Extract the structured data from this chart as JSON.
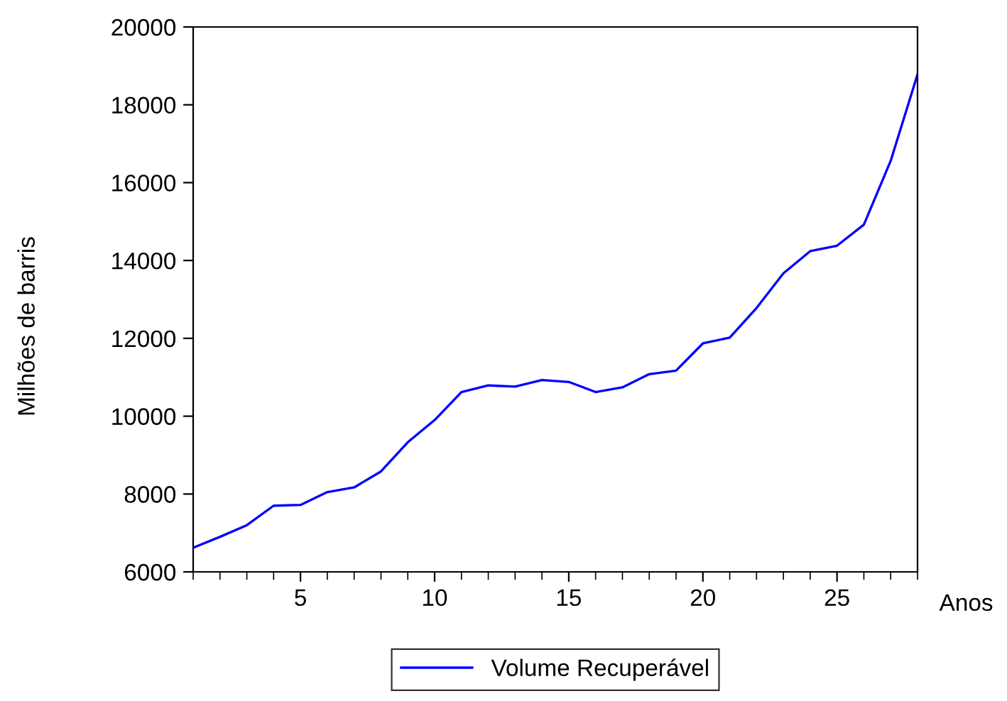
{
  "chart_data": {
    "type": "line",
    "xlabel": "Anos",
    "ylabel": "Milhões de barris",
    "x": [
      1,
      2,
      3,
      4,
      5,
      6,
      7,
      8,
      9,
      10,
      11,
      12,
      13,
      14,
      15,
      16,
      17,
      18,
      19,
      20,
      21,
      22,
      23,
      24,
      25,
      26,
      27,
      28
    ],
    "series": [
      {
        "name": "Volume Recuperável",
        "color": "#0000ff",
        "values": [
          6620,
          6900,
          7200,
          7700,
          7720,
          8050,
          8170,
          8580,
          9330,
          9900,
          10620,
          10790,
          10760,
          10930,
          10880,
          10620,
          10740,
          11080,
          11170,
          11870,
          12020,
          12780,
          13670,
          14240,
          14380,
          14920,
          16560,
          18780
        ]
      }
    ],
    "xlim": [
      1,
      28
    ],
    "xticks": [
      5,
      10,
      15,
      20,
      25
    ],
    "ylim": [
      6000,
      20000
    ],
    "yticks": [
      6000,
      8000,
      10000,
      12000,
      14000,
      16000,
      18000,
      20000
    ],
    "grid": false,
    "legend": "bottom",
    "marker": "none",
    "line_style": "solid"
  }
}
